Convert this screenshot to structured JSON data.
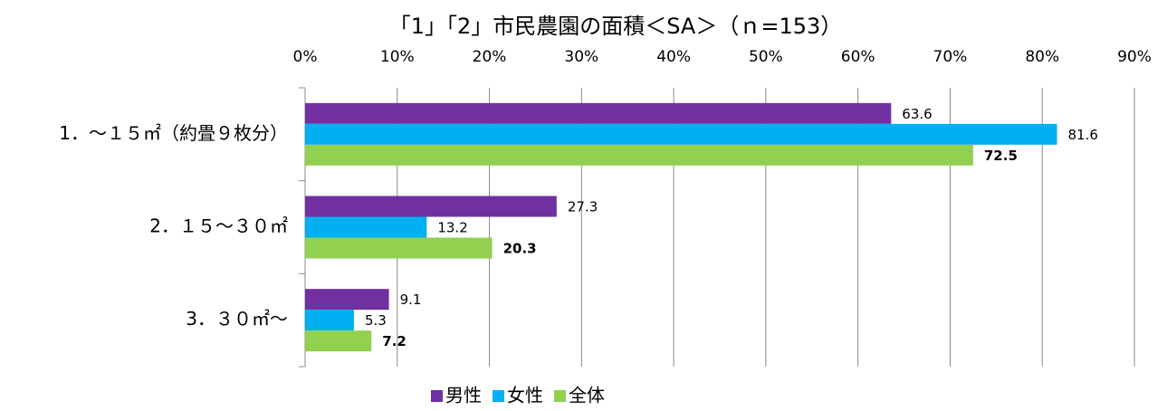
{
  "chart_data": {
    "type": "hbar",
    "title": "「1」「2」市民農園の面積＜SA＞（ｎ=153）",
    "categories": [
      "1．～１５㎡（約畳９枚分）",
      "2．１５～３０㎡",
      "3．３０㎡～"
    ],
    "series": [
      {
        "name": "男性",
        "color": "#7030a0",
        "values": [
          63.6,
          27.3,
          9.1
        ]
      },
      {
        "name": "女性",
        "color": "#00b0f0",
        "values": [
          81.6,
          13.2,
          5.3
        ]
      },
      {
        "name": "全体",
        "color": "#92d050",
        "values": [
          72.5,
          20.3,
          7.2
        ]
      }
    ],
    "xlim": [
      0,
      90
    ],
    "xticks": [
      {
        "value": 0,
        "label": "0%"
      },
      {
        "value": 10,
        "label": "10%"
      },
      {
        "value": 20,
        "label": "20%"
      },
      {
        "value": 30,
        "label": "30%"
      },
      {
        "value": 40,
        "label": "40%"
      },
      {
        "value": 50,
        "label": "50%"
      },
      {
        "value": 60,
        "label": "60%"
      },
      {
        "value": 70,
        "label": "70%"
      },
      {
        "value": 80,
        "label": "80%"
      },
      {
        "value": 90,
        "label": "90%"
      }
    ],
    "grid": true,
    "legend": "bottom"
  }
}
